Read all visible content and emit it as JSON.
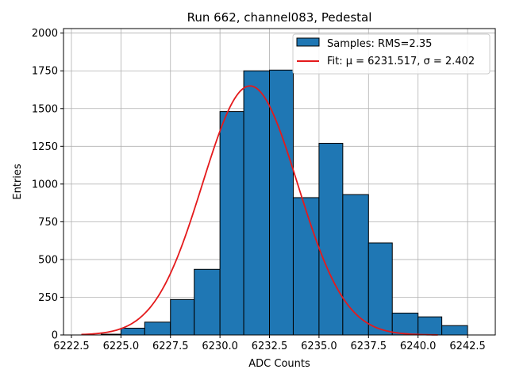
{
  "chart_data": {
    "type": "bar",
    "title": "Run 662, channel083, Pedestal",
    "xlabel": "ADC Counts",
    "ylabel": "Entries",
    "xlim": [
      6222.1,
      6243.9
    ],
    "ylim": [
      0,
      2030
    ],
    "x_ticks": [
      6222.5,
      6225.0,
      6227.5,
      6230.0,
      6232.5,
      6235.0,
      6237.5,
      6240.0,
      6242.5
    ],
    "x_tick_labels": [
      "6222.5",
      "6225.0",
      "6227.5",
      "6230.0",
      "6232.5",
      "6235.0",
      "6237.5",
      "6240.0",
      "6242.5"
    ],
    "y_ticks": [
      0,
      250,
      500,
      750,
      1000,
      1250,
      1500,
      1750,
      2000
    ],
    "y_tick_labels": [
      "0",
      "250",
      "500",
      "750",
      "1000",
      "1250",
      "1500",
      "1750",
      "2000"
    ],
    "grid": true,
    "legend_position": "top-right",
    "histogram": {
      "name": "Samples: RMS=2.35",
      "color": "#1f77b4",
      "edge_color": "#000000",
      "bins": [
        {
          "x0": 6224.0,
          "x1": 6225.0,
          "y": 5
        },
        {
          "x0": 6225.0,
          "x1": 6226.2,
          "y": 45
        },
        {
          "x0": 6226.2,
          "x1": 6227.5,
          "y": 85
        },
        {
          "x0": 6227.5,
          "x1": 6228.7,
          "y": 235
        },
        {
          "x0": 6228.7,
          "x1": 6230.0,
          "y": 435
        },
        {
          "x0": 6230.0,
          "x1": 6231.2,
          "y": 1480
        },
        {
          "x0": 6231.2,
          "x1": 6232.5,
          "y": 1750
        },
        {
          "x0": 6232.5,
          "x1": 6233.7,
          "y": 1755
        },
        {
          "x0": 6233.7,
          "x1": 6235.0,
          "y": 910
        },
        {
          "x0": 6235.0,
          "x1": 6236.2,
          "y": 1270
        },
        {
          "x0": 6236.2,
          "x1": 6237.5,
          "y": 930
        },
        {
          "x0": 6237.5,
          "x1": 6238.7,
          "y": 610
        },
        {
          "x0": 6238.7,
          "x1": 6240.0,
          "y": 145
        },
        {
          "x0": 6240.0,
          "x1": 6241.2,
          "y": 120
        },
        {
          "x0": 6241.2,
          "x1": 6242.5,
          "y": 62
        }
      ]
    },
    "fit": {
      "name": "Fit: μ = 6231.517, σ = 2.402",
      "color": "#e41a1c",
      "mu": 6231.517,
      "sigma": 2.402,
      "amplitude": 1650,
      "x_range": [
        6223.0,
        6241.0
      ]
    }
  }
}
